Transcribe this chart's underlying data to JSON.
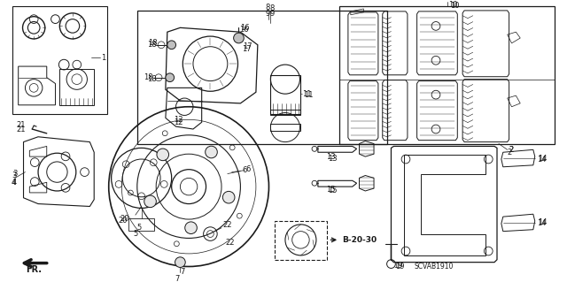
{
  "bg_color": "#ffffff",
  "lc": "#1a1a1a",
  "scvab": "SCVAB1910",
  "b2030": "B-20-30",
  "fig_w": 6.4,
  "fig_h": 3.19,
  "dpi": 100
}
